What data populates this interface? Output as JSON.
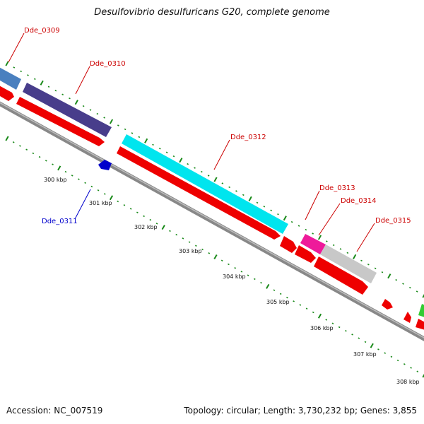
{
  "title": "Desulfovibrio desulfuricans G20, complete genome",
  "footer": {
    "accession": "Accession: NC_007519",
    "topology": "Topology: circular; Length: 3,730,232 bp; Genes: 3,855"
  },
  "colors": {
    "backbone": "#888888",
    "tick_green": "#1a8a1a",
    "label_red": "#cc0000",
    "label_blue": "#0000cc",
    "gc_green": "#33cc33"
  },
  "kbp_labels": [
    "300 kbp",
    "301 kbp",
    "302 kbp",
    "303 kbp",
    "304 kbp",
    "305 kbp",
    "306 kbp",
    "307 kbp",
    "308 kbp"
  ],
  "genes": [
    {
      "name": "Dde_0309",
      "color": "#4a80bf",
      "strand": "plus"
    },
    {
      "name": "Dde_0310",
      "color": "#483d8b",
      "strand": "plus"
    },
    {
      "name": "Dde_0311",
      "color": "#0000cc",
      "strand": "minus"
    },
    {
      "name": "Dde_0312",
      "color": "#00e5ee",
      "strand": "plus"
    },
    {
      "name": "Dde_0313",
      "color": "#ee1a9a",
      "strand": "plus"
    },
    {
      "name": "Dde_0314",
      "color": "#c8c8c8",
      "strand": "plus"
    },
    {
      "name": "Dde_0315",
      "color": "#ee0000",
      "strand": "plus"
    }
  ]
}
